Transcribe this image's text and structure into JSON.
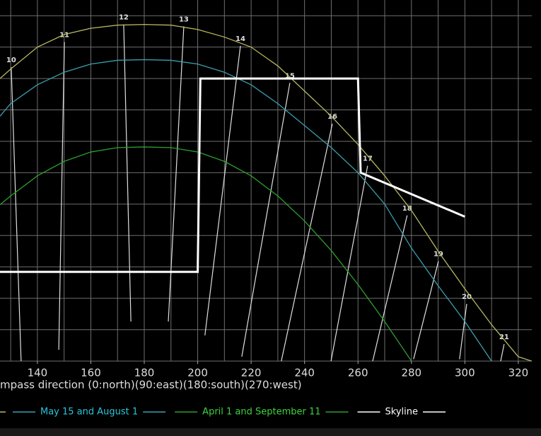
{
  "chart_data": {
    "type": "line",
    "x_label": "mpass direction (0:north)(90:east)(180:south)(270:west)",
    "xlim": [
      126,
      328.5
    ],
    "ylim": [
      0,
      57.5
    ],
    "xticks": [
      140,
      160,
      180,
      200,
      220,
      240,
      260,
      280,
      300,
      320
    ],
    "xgrid": [
      130,
      140,
      150,
      160,
      170,
      180,
      190,
      200,
      210,
      220,
      230,
      240,
      250,
      260,
      270,
      280,
      290,
      300,
      310,
      320
    ],
    "yticks": [
      0,
      5,
      10,
      15,
      20,
      25,
      30,
      35,
      40,
      45,
      50,
      55
    ],
    "grid": true,
    "series": [
      {
        "color": "#b8b860",
        "x": [
          126,
          130,
          140,
          150,
          160,
          170,
          180,
          190,
          200,
          210,
          220,
          230,
          240,
          250,
          260,
          270,
          280,
          290,
          300,
          310,
          320,
          325
        ],
        "values": [
          45.0,
          46.5,
          50.0,
          52.0,
          53.0,
          53.5,
          53.6,
          53.5,
          52.8,
          51.6,
          50.0,
          47.0,
          43.0,
          39.0,
          34.5,
          29.5,
          24.0,
          17.5,
          11.5,
          5.8,
          0.7,
          0
        ]
      },
      {
        "name": "May 15 and August 1",
        "color": "#3a9fae",
        "text_color": "#26c6da",
        "x": [
          126,
          130,
          140,
          150,
          160,
          170,
          180,
          190,
          200,
          210,
          220,
          230,
          240,
          250,
          260,
          270,
          280,
          290,
          300,
          310
        ],
        "values": [
          39.0,
          41.0,
          44.0,
          46.0,
          47.3,
          47.9,
          48.0,
          47.9,
          47.3,
          46.0,
          44.0,
          41.0,
          37.5,
          34.0,
          30.0,
          25.0,
          18.0,
          12.0,
          6.3,
          0
        ]
      },
      {
        "name": "April 1 and September 11",
        "color": "#2e9e2e",
        "text_color": "#3cd23c",
        "x": [
          126,
          130,
          140,
          150,
          160,
          170,
          180,
          190,
          200,
          210,
          220,
          230,
          240,
          250,
          260,
          270,
          280
        ],
        "values": [
          24.9,
          26.3,
          29.5,
          31.8,
          33.3,
          34.0,
          34.1,
          34.0,
          33.3,
          31.8,
          29.5,
          26.3,
          22.3,
          17.6,
          12.2,
          6.3,
          0
        ]
      },
      {
        "name": "Skyline",
        "color": "#ffffff",
        "text_color": "#ffffff",
        "width": 3,
        "x": [
          126,
          200,
          201,
          260,
          261,
          300
        ],
        "values": [
          14.2,
          14.2,
          45.0,
          45.0,
          30.0,
          23.0
        ]
      }
    ],
    "hour_lines": [
      {
        "label": "10",
        "x": [
          130.2,
          133.9
        ],
        "values": [
          46.8,
          0
        ]
      },
      {
        "label": "11",
        "x": [
          150.1,
          148.0
        ],
        "values": [
          50.8,
          1.8
        ]
      },
      {
        "label": "12",
        "x": [
          172.3,
          175.0
        ],
        "values": [
          53.6,
          6.3
        ]
      },
      {
        "label": "13",
        "x": [
          194.8,
          189.0
        ],
        "values": [
          53.3,
          6.3
        ]
      },
      {
        "label": "14",
        "x": [
          216.0,
          202.7
        ],
        "values": [
          50.2,
          4.1
        ]
      },
      {
        "label": "15",
        "x": [
          234.5,
          216.5
        ],
        "values": [
          44.3,
          0.7
        ]
      },
      {
        "label": "16",
        "x": [
          250.4,
          231.3
        ],
        "values": [
          37.8,
          0
        ]
      },
      {
        "label": "17",
        "x": [
          263.6,
          249.9
        ],
        "values": [
          31.1,
          0
        ]
      },
      {
        "label": "18",
        "x": [
          278.4,
          265.5
        ],
        "values": [
          23.2,
          0
        ]
      },
      {
        "label": "19",
        "x": [
          290.1,
          280.8
        ],
        "values": [
          15.9,
          0.3
        ]
      },
      {
        "label": "20",
        "x": [
          300.7,
          298.0
        ],
        "values": [
          9.1,
          0.3
        ]
      },
      {
        "label": "21",
        "x": [
          314.7,
          313.4
        ],
        "values": [
          2.7,
          0
        ]
      }
    ]
  }
}
